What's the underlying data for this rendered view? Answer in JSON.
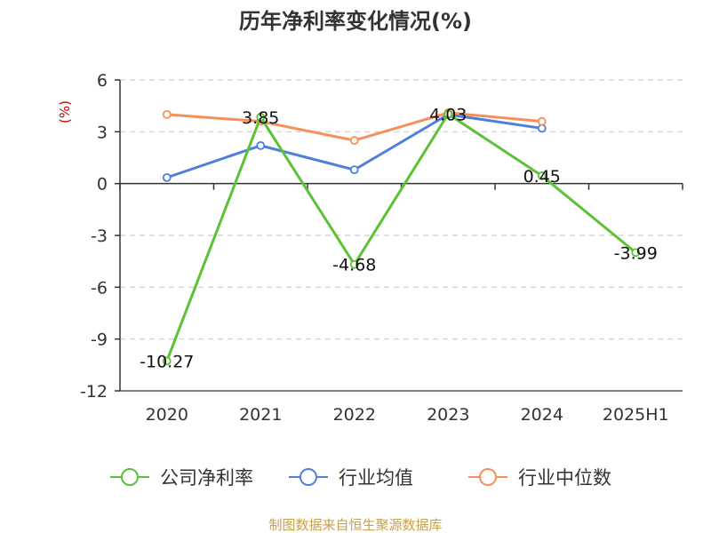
{
  "chart_data": {
    "type": "line",
    "title": "历年净利率变化情况(%)",
    "ylabel": "(%)",
    "xlabel": "",
    "categories": [
      "2020",
      "2021",
      "2022",
      "2023",
      "2024",
      "2025H1"
    ],
    "ylim": [
      -12,
      6
    ],
    "yticks": [
      6,
      3,
      0,
      -3,
      -6,
      -9,
      -12
    ],
    "grid": true,
    "legend_position": "bottom",
    "series": [
      {
        "name": "公司净利率",
        "color": "#5bc236",
        "values": [
          -10.27,
          3.85,
          -4.68,
          4.03,
          0.45,
          -3.99
        ],
        "labels": [
          "-10.27",
          "3.85",
          "-4.68",
          "4.03",
          "0.45",
          "-3.99"
        ]
      },
      {
        "name": "行业均值",
        "color": "#4f7fdc",
        "values": [
          0.35,
          2.2,
          0.8,
          4.0,
          3.2,
          null
        ]
      },
      {
        "name": "行业中位数",
        "color": "#f5905a",
        "values": [
          4.0,
          3.6,
          2.5,
          4.1,
          3.6,
          null
        ]
      }
    ]
  },
  "source": "制图数据来自恒生聚源数据库",
  "colors": {
    "ylabel": "#cc0000",
    "source": "#c8a04a",
    "axis": "#333333",
    "grid": "#cccccc"
  }
}
